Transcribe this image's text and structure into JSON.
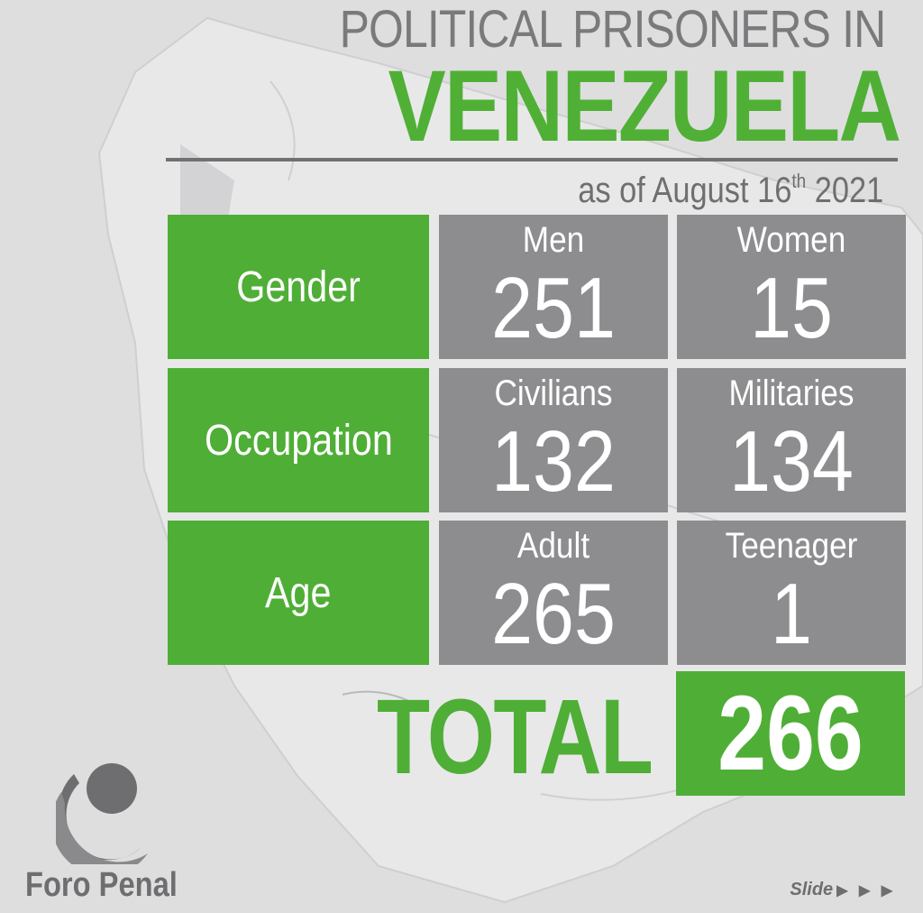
{
  "header": {
    "title_line1": "POLITICAL PRISONERS IN",
    "title_line2": "VENEZUELA",
    "date_prefix": "as of August 16",
    "date_sup": "th",
    "date_year": " 2021"
  },
  "table": {
    "rows": [
      {
        "category": "Gender",
        "cells": [
          {
            "label": "Men",
            "value": "251"
          },
          {
            "label": "Women",
            "value": "15"
          }
        ]
      },
      {
        "category": "Occupation",
        "cells": [
          {
            "label": "Civilians",
            "value": "132"
          },
          {
            "label": "Militaries",
            "value": "134"
          }
        ]
      },
      {
        "category": "Age",
        "cells": [
          {
            "label": "Adult",
            "value": "265"
          },
          {
            "label": "Teenager",
            "value": "1"
          }
        ]
      }
    ]
  },
  "total": {
    "label": "TOTAL",
    "value": "266"
  },
  "footer": {
    "brand": "Foro Penal",
    "logo_icon": "foro-penal-logo-icon",
    "slide_label": "Slide",
    "slide_arrows": "▶ ▶ ▶"
  },
  "colors": {
    "green": "#4fae36",
    "gray_cell": "#8d8d8f",
    "gray_text": "#7a7a7c",
    "background": "#dededf"
  }
}
